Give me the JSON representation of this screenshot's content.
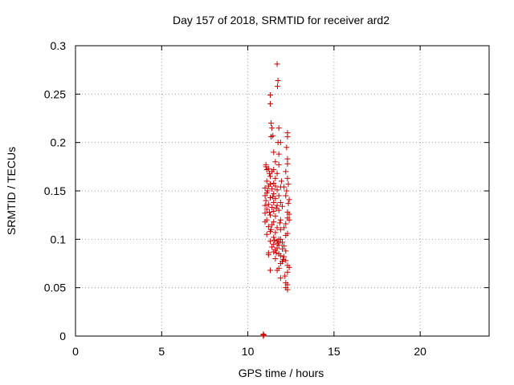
{
  "chart_data": {
    "type": "scatter",
    "title": "Day 157 of 2018, SRMTID for receiver ard2",
    "xlabel": "GPS time / hours",
    "ylabel": "SRMTID / TECUs",
    "xlim": [
      0,
      24
    ],
    "ylim": [
      0,
      0.3
    ],
    "xticks": [
      "0",
      "5",
      "10",
      "15",
      "20"
    ],
    "xtick_values": [
      0,
      5,
      10,
      15,
      20
    ],
    "yticks": [
      "0",
      "0.05",
      "0.1",
      "0.15",
      "0.2",
      "0.25",
      "0.3"
    ],
    "ytick_values": [
      0,
      0.05,
      0.1,
      0.15,
      0.2,
      0.25,
      0.3
    ],
    "grid": true,
    "marker": "plus",
    "color": "#cc0000",
    "series": [
      {
        "points": [
          [
            10.9,
            0.001
          ],
          [
            10.9,
            0.002
          ],
          [
            10.9,
            0.0
          ],
          [
            10.92,
            0.001
          ],
          [
            11.7,
            0.281
          ],
          [
            11.75,
            0.264
          ],
          [
            11.72,
            0.258
          ],
          [
            11.3,
            0.249
          ],
          [
            11.3,
            0.24
          ],
          [
            11.35,
            0.22
          ],
          [
            11.4,
            0.215
          ],
          [
            11.8,
            0.215
          ],
          [
            11.45,
            0.207
          ],
          [
            11.35,
            0.206
          ],
          [
            12.3,
            0.21
          ],
          [
            12.3,
            0.206
          ],
          [
            11.75,
            0.2
          ],
          [
            11.9,
            0.2
          ],
          [
            12.25,
            0.195
          ],
          [
            11.5,
            0.19
          ],
          [
            11.8,
            0.188
          ],
          [
            12.3,
            0.183
          ],
          [
            12.3,
            0.178
          ],
          [
            11.6,
            0.18
          ],
          [
            11.8,
            0.177
          ],
          [
            11.05,
            0.177
          ],
          [
            11.05,
            0.175
          ],
          [
            11.2,
            0.173
          ],
          [
            11.5,
            0.172
          ],
          [
            11.4,
            0.17
          ],
          [
            12.2,
            0.17
          ],
          [
            11.7,
            0.168
          ],
          [
            11.3,
            0.165
          ],
          [
            12.3,
            0.163
          ],
          [
            11.1,
            0.16
          ],
          [
            11.5,
            0.158
          ],
          [
            11.3,
            0.157
          ],
          [
            12.35,
            0.157
          ],
          [
            11.2,
            0.155
          ],
          [
            11.6,
            0.155
          ],
          [
            11.9,
            0.154
          ],
          [
            12.1,
            0.154
          ],
          [
            11.0,
            0.153
          ],
          [
            11.4,
            0.152
          ],
          [
            11.7,
            0.151
          ],
          [
            12.25,
            0.15
          ],
          [
            11.1,
            0.148
          ],
          [
            11.5,
            0.147
          ],
          [
            11.0,
            0.145
          ],
          [
            11.8,
            0.145
          ],
          [
            12.2,
            0.145
          ],
          [
            11.3,
            0.143
          ],
          [
            11.6,
            0.142
          ],
          [
            12.4,
            0.141
          ],
          [
            11.05,
            0.14
          ],
          [
            11.5,
            0.138
          ],
          [
            11.9,
            0.138
          ],
          [
            12.35,
            0.137
          ],
          [
            11.2,
            0.136
          ],
          [
            11.0,
            0.135
          ],
          [
            11.7,
            0.135
          ],
          [
            12.0,
            0.134
          ],
          [
            11.4,
            0.133
          ],
          [
            11.1,
            0.131
          ],
          [
            11.8,
            0.13
          ],
          [
            11.5,
            0.129
          ],
          [
            12.3,
            0.128
          ],
          [
            11.0,
            0.127
          ],
          [
            12.4,
            0.126
          ],
          [
            11.3,
            0.125
          ],
          [
            11.6,
            0.124
          ],
          [
            12.3,
            0.122
          ],
          [
            11.1,
            0.12
          ],
          [
            11.9,
            0.12
          ],
          [
            12.4,
            0.12
          ],
          [
            11.0,
            0.118
          ],
          [
            11.5,
            0.118
          ],
          [
            12.2,
            0.116
          ],
          [
            11.4,
            0.115
          ],
          [
            11.2,
            0.113
          ],
          [
            11.7,
            0.112
          ],
          [
            12.1,
            0.112
          ],
          [
            11.9,
            0.11
          ],
          [
            11.3,
            0.108
          ],
          [
            11.6,
            0.107
          ],
          [
            12.3,
            0.106
          ],
          [
            11.1,
            0.105
          ],
          [
            12.2,
            0.104
          ],
          [
            11.5,
            0.102
          ],
          [
            11.8,
            0.1
          ],
          [
            11.9,
            0.1
          ],
          [
            11.7,
            0.098
          ],
          [
            11.3,
            0.098
          ],
          [
            12.0,
            0.097
          ],
          [
            11.5,
            0.095
          ],
          [
            11.8,
            0.094
          ],
          [
            12.1,
            0.093
          ],
          [
            11.4,
            0.092
          ],
          [
            11.7,
            0.091
          ],
          [
            12.0,
            0.09
          ],
          [
            11.6,
            0.089
          ],
          [
            12.2,
            0.088
          ],
          [
            11.2,
            0.086
          ],
          [
            11.5,
            0.087
          ],
          [
            11.2,
            0.084
          ],
          [
            11.8,
            0.085
          ],
          [
            11.9,
            0.083
          ],
          [
            12.1,
            0.082
          ],
          [
            11.6,
            0.08
          ],
          [
            12.2,
            0.078
          ],
          [
            12.0,
            0.077
          ],
          [
            11.9,
            0.075
          ],
          [
            12.3,
            0.073
          ],
          [
            12.4,
            0.071
          ],
          [
            11.8,
            0.07
          ],
          [
            11.3,
            0.068
          ],
          [
            11.7,
            0.068
          ],
          [
            12.3,
            0.066
          ],
          [
            11.9,
            0.06
          ],
          [
            12.2,
            0.055
          ],
          [
            12.3,
            0.053
          ],
          [
            12.2,
            0.05
          ],
          [
            12.3,
            0.048
          ],
          [
            11.1,
            0.172
          ],
          [
            11.25,
            0.168
          ],
          [
            11.6,
            0.163
          ],
          [
            11.95,
            0.16
          ],
          [
            11.15,
            0.15
          ],
          [
            11.45,
            0.144
          ],
          [
            11.65,
            0.132
          ],
          [
            11.25,
            0.128
          ],
          [
            11.85,
            0.117
          ],
          [
            11.35,
            0.11
          ],
          [
            11.55,
            0.099
          ],
          [
            11.75,
            0.096
          ],
          [
            11.65,
            0.086
          ],
          [
            12.05,
            0.079
          ],
          [
            12.15,
            0.062
          ]
        ]
      }
    ]
  }
}
